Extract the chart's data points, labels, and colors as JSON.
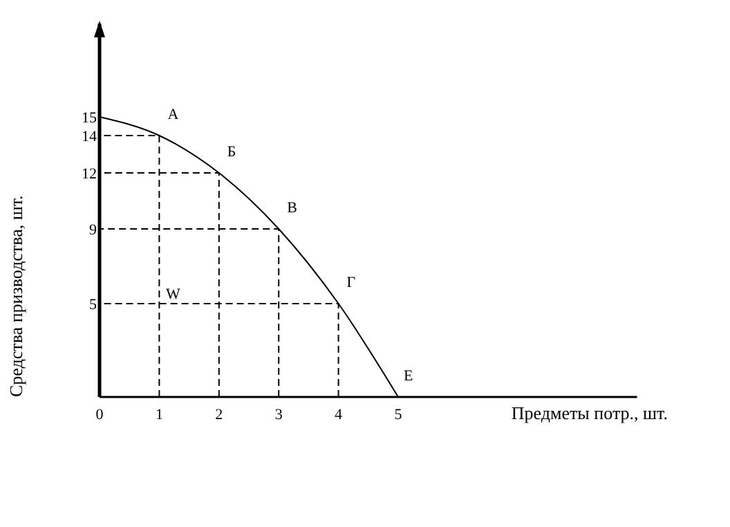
{
  "chart_data": {
    "type": "line",
    "xlabel": "Предметы потр., шт.",
    "ylabel": "Средства призводства, шт.",
    "x": [
      0,
      1,
      2,
      3,
      4,
      5
    ],
    "series": [
      {
        "color": "#000000",
        "values": [
          15,
          14,
          12,
          9,
          5,
          0
        ]
      },
      {
        "color": "#000000",
        "line_style": "dashed",
        "x": [
          1,
          1,
          0
        ],
        "values": [
          0,
          14,
          14
        ]
      },
      {
        "color": "#000000",
        "line_style": "dashed",
        "x": [
          2,
          2,
          0
        ],
        "values": [
          0,
          12,
          12
        ]
      },
      {
        "color": "#000000",
        "line_style": "dashed",
        "x": [
          3,
          3,
          0
        ],
        "values": [
          0,
          9,
          9
        ]
      },
      {
        "color": "#000000",
        "line_style": "dashed",
        "x": [
          4,
          4,
          0
        ],
        "values": [
          0,
          5,
          5
        ]
      }
    ],
    "xlim": [
      0,
      9
    ],
    "ylim": [
      0,
      20
    ],
    "xticks": [
      0,
      1,
      2,
      3,
      4,
      5
    ],
    "yticks": [
      5,
      9,
      12,
      14,
      15
    ],
    "marker": "none",
    "line_style": "solid",
    "grid": false,
    "annotations": [
      {
        "text": "А",
        "x": 1,
        "y": 14
      },
      {
        "text": "Б",
        "x": 2,
        "y": 12
      },
      {
        "text": "В",
        "x": 3,
        "y": 9
      },
      {
        "text": "Г",
        "x": 4,
        "y": 5
      },
      {
        "text": "Е",
        "x": 5,
        "y": 0
      },
      "W"
    ]
  }
}
